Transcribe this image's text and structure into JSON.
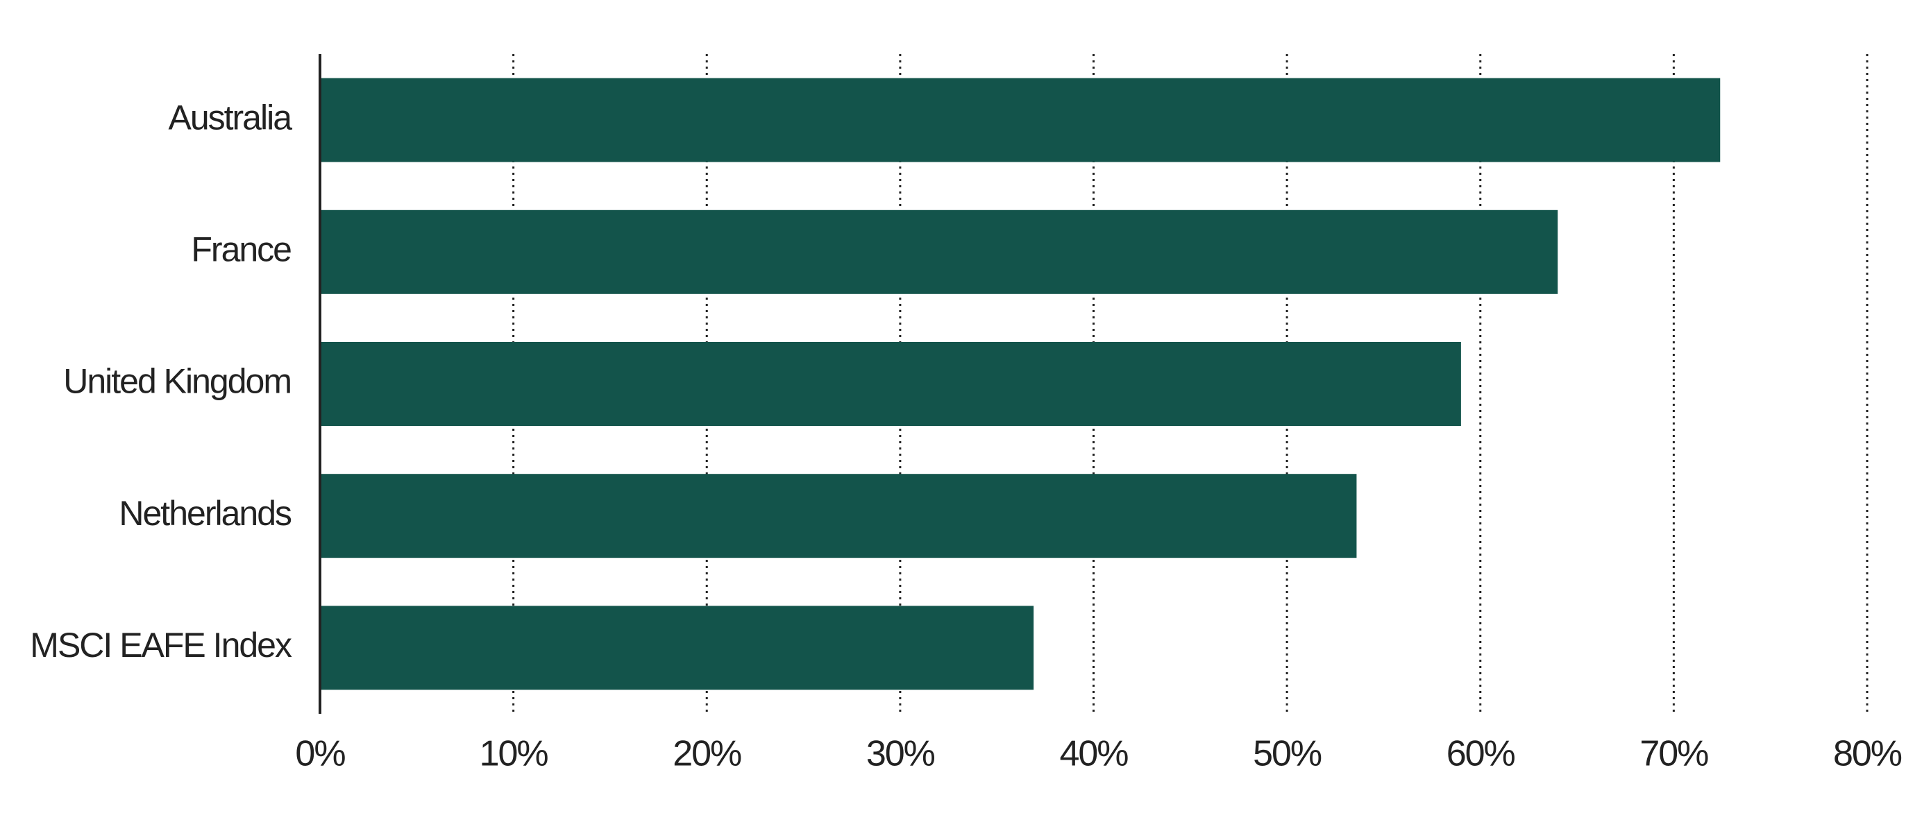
{
  "chart_data": {
    "type": "barh",
    "categories": [
      "Australia",
      "France",
      "United Kingdom",
      "Netherlands",
      "MSCI EAFE Index"
    ],
    "values": [
      72.4,
      64,
      59,
      53.6,
      36.9
    ],
    "color": "#13544b",
    "xlim": [
      0,
      80
    ],
    "xticks": [
      {
        "value": 0,
        "label": "0%"
      },
      {
        "value": 10,
        "label": "10%"
      },
      {
        "value": 20,
        "label": "20%"
      },
      {
        "value": 30,
        "label": "30%"
      },
      {
        "value": 40,
        "label": "40%"
      },
      {
        "value": 50,
        "label": "50%"
      },
      {
        "value": 60,
        "label": "60%"
      },
      {
        "value": 70,
        "label": "70%"
      },
      {
        "value": 80,
        "label": "80%"
      }
    ],
    "grid": true
  }
}
